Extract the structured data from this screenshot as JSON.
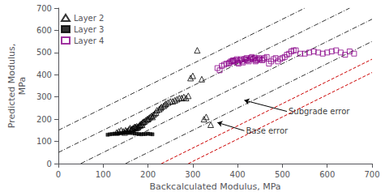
{
  "chart_data": {
    "type": "scatter",
    "xlabel": "Backcalculated Modulus, MPa",
    "ylabel": "Predicted Modulus,\nMPa",
    "xlim": [
      0,
      700
    ],
    "ylim": [
      0,
      700
    ],
    "xticks": [
      0,
      100,
      200,
      300,
      400,
      500,
      600,
      700
    ],
    "yticks": [
      0,
      100,
      200,
      300,
      400,
      500,
      600,
      700
    ],
    "grid": false,
    "legend": "upper left",
    "series": [
      {
        "type": "line",
        "line_style": "dashdot",
        "color": "#333333",
        "x": [
          0,
          550
        ],
        "values": [
          150,
          700
        ]
      },
      {
        "type": "line",
        "line_style": "dashdot",
        "color": "#333333",
        "x": [
          0,
          650
        ],
        "values": [
          50,
          700
        ]
      },
      {
        "type": "line",
        "line_style": "dashdot",
        "color": "#333333",
        "x": [
          50,
          700
        ],
        "values": [
          0,
          650
        ]
      },
      {
        "type": "line",
        "line_style": "dashdot",
        "color": "#333333",
        "x": [
          150,
          700
        ],
        "values": [
          0,
          550
        ]
      },
      {
        "type": "line",
        "line_style": "dashed",
        "color": "#cc0000",
        "x": [
          230,
          700
        ],
        "values": [
          0,
          470
        ]
      },
      {
        "type": "line",
        "line_style": "dashed",
        "color": "#cc0000",
        "x": [
          290,
          700
        ],
        "values": [
          0,
          410
        ]
      },
      {
        "name": "Layer 2",
        "type": "scatter",
        "marker": "open-triangle",
        "color": "#000000",
        "x": [
          130,
          135,
          140,
          145,
          148,
          150,
          152,
          155,
          158,
          160,
          162,
          163,
          165,
          166,
          168,
          170,
          172,
          173,
          175,
          176,
          178,
          180,
          182,
          183,
          185,
          187,
          188,
          190,
          192,
          195,
          198,
          200,
          202,
          205,
          208,
          210,
          212,
          215,
          218,
          220,
          225,
          228,
          230,
          235,
          238,
          240,
          245,
          250,
          255,
          260,
          265,
          270,
          275,
          280,
          285,
          290,
          295,
          300,
          310,
          320,
          325,
          330,
          340
        ],
        "values": [
          140,
          145,
          150,
          145,
          140,
          150,
          145,
          148,
          155,
          160,
          155,
          152,
          155,
          158,
          160,
          165,
          165,
          160,
          168,
          162,
          165,
          170,
          175,
          172,
          180,
          175,
          185,
          188,
          190,
          195,
          200,
          200,
          205,
          210,
          215,
          210,
          220,
          225,
          230,
          240,
          245,
          250,
          255,
          260,
          265,
          270,
          275,
          280,
          280,
          285,
          290,
          295,
          295,
          300,
          295,
          305,
          385,
          395,
          510,
          380,
          200,
          210,
          175
        ]
      },
      {
        "name": "Layer 3",
        "type": "scatter",
        "marker": "square",
        "color": "#000000",
        "x": [
          110,
          115,
          120,
          125,
          130,
          135,
          140,
          145,
          150,
          155,
          160,
          165,
          170,
          175,
          180,
          185,
          190,
          195,
          200,
          205,
          210
        ],
        "values": [
          130,
          132,
          133,
          135,
          135,
          136,
          138,
          138,
          140,
          140,
          138,
          138,
          135,
          135,
          133,
          132,
          133,
          133,
          135,
          133,
          132
        ]
      },
      {
        "name": "Layer 4",
        "type": "scatter",
        "marker": "open-square",
        "color": "#880088",
        "x": [
          355,
          360,
          365,
          370,
          375,
          380,
          382,
          385,
          388,
          390,
          392,
          395,
          398,
          400,
          402,
          405,
          408,
          410,
          412,
          415,
          418,
          420,
          422,
          425,
          428,
          430,
          432,
          435,
          438,
          440,
          442,
          445,
          448,
          450,
          455,
          458,
          460,
          465,
          470,
          475,
          480,
          485,
          490,
          495,
          500,
          505,
          510,
          515,
          520,
          525,
          530,
          540,
          550,
          560,
          570,
          580,
          590,
          600,
          610,
          620,
          630,
          640,
          650,
          660
        ],
        "values": [
          430,
          420,
          440,
          445,
          450,
          450,
          455,
          460,
          460,
          465,
          460,
          465,
          470,
          455,
          450,
          465,
          470,
          460,
          455,
          470,
          470,
          475,
          465,
          460,
          470,
          475,
          480,
          470,
          475,
          460,
          465,
          470,
          475,
          470,
          465,
          470,
          475,
          480,
          450,
          460,
          470,
          475,
          460,
          470,
          475,
          480,
          490,
          495,
          505,
          510,
          510,
          495,
          495,
          500,
          505,
          500,
          495,
          500,
          505,
          510,
          500,
          490,
          505,
          495
        ]
      }
    ],
    "annotations": [
      {
        "text": "Subgrade error",
        "xy": [
          415,
          285
        ],
        "xytext": [
          510,
          235
        ]
      },
      {
        "text": "Base error",
        "xy": [
          355,
          185
        ],
        "xytext": [
          415,
          148
        ]
      }
    ]
  }
}
